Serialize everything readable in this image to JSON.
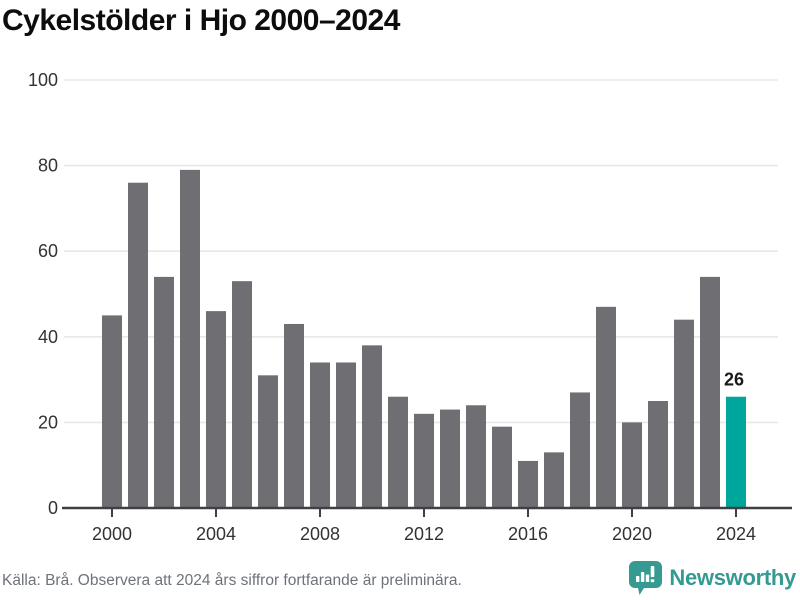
{
  "chart_data": {
    "type": "bar",
    "title": "Cykelstölder i Hjo 2000–2024",
    "x": [
      2000,
      2001,
      2002,
      2003,
      2004,
      2005,
      2006,
      2007,
      2008,
      2009,
      2010,
      2011,
      2012,
      2013,
      2014,
      2015,
      2016,
      2017,
      2018,
      2019,
      2020,
      2021,
      2022,
      2023,
      2024
    ],
    "values": [
      45,
      76,
      54,
      79,
      46,
      53,
      31,
      43,
      34,
      34,
      38,
      26,
      22,
      23,
      24,
      19,
      11,
      13,
      27,
      47,
      20,
      25,
      44,
      54,
      26
    ],
    "highlight_index": 24,
    "data_label": {
      "index": 24,
      "text": "26"
    },
    "xticks": [
      2000,
      2004,
      2008,
      2012,
      2016,
      2020,
      2024
    ],
    "yticks": [
      0,
      20,
      40,
      60,
      80,
      100
    ],
    "ylim": [
      0,
      100
    ],
    "grid": true,
    "legend": "none"
  },
  "colors": {
    "bar": "#6e6e73",
    "highlight": "#00a69c",
    "grid": "#e8e8e8",
    "axis": "#404044",
    "tick_label": "#333333",
    "data_label": "#1a1a1a",
    "title": "#0d0d0d",
    "footer_text": "#6d727b",
    "brand_teal": "#359a92"
  },
  "footer": {
    "source_note": "Källa: Brå. Observera att 2024 års siffror fortfarande är preliminära.",
    "brand": "Newsworthy"
  }
}
